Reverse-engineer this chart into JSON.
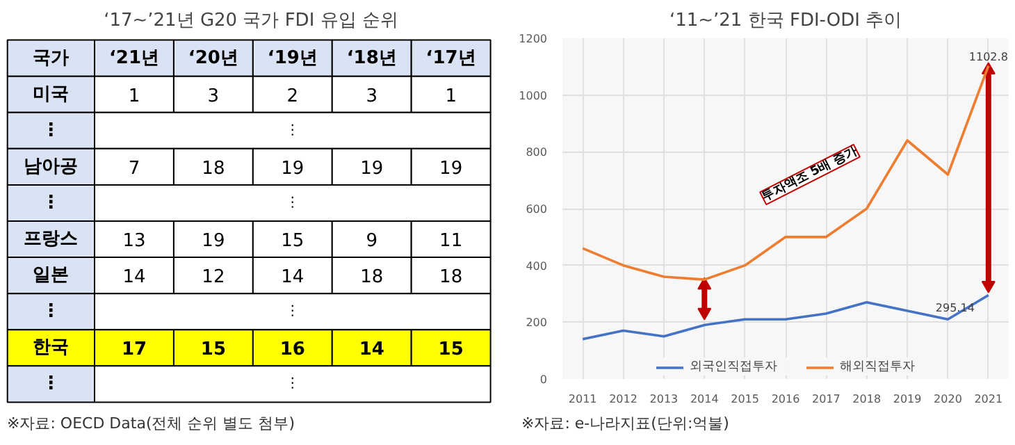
{
  "chart_data": [
    {
      "type": "heatmap",
      "title": "‘17~’21년 G20 국가 FDI 유입 순위",
      "ylabel": "국가",
      "categories": [
        "‘21년",
        "‘20년",
        "‘19년",
        "‘18년",
        "‘17년"
      ],
      "y_categories": [
        "미국",
        "⋮",
        "남아공",
        "⋮",
        "프랑스",
        "일본",
        "⋮",
        "한국",
        "⋮"
      ],
      "cells": [
        [
          1,
          3,
          2,
          3,
          1
        ],
        [
          null,
          null,
          null,
          null,
          null
        ],
        [
          7,
          18,
          19,
          19,
          19
        ],
        [
          null,
          null,
          null,
          null,
          null
        ],
        [
          13,
          19,
          15,
          9,
          11
        ],
        [
          14,
          12,
          14,
          18,
          18
        ],
        [
          null,
          null,
          null,
          null,
          null
        ],
        [
          17,
          15,
          16,
          14,
          15
        ],
        [
          null,
          null,
          null,
          null,
          null
        ]
      ],
      "colors": [
        "#ffffff",
        "#ffffff",
        "#ffffff",
        "#ffffff",
        "#ffffff",
        "#ffffff",
        "#ffffff",
        "#ffff00",
        "#ffffff"
      ],
      "data_labels": true,
      "annotations": [
        "⋮",
        "⋮",
        "⋮",
        "⋮",
        "※자료: OECD Data(전체 순위 별도 첨부)"
      ]
    },
    {
      "type": "line",
      "title": "‘11~’21 한국 FDI-ODI 추이",
      "x": [
        2011,
        2012,
        2013,
        2014,
        2015,
        2016,
        2017,
        2018,
        2019,
        2020,
        2021
      ],
      "series": [
        {
          "name": "외국인직접투자",
          "color": "#4472c4",
          "values": [
            140,
            170,
            150,
            190,
            210,
            210,
            230,
            270,
            240,
            210,
            295.14
          ]
        },
        {
          "name": "해외직접투자",
          "color": "#ed7d31",
          "values": [
            460,
            400,
            360,
            350,
            400,
            500,
            500,
            600,
            840,
            720,
            1102.8
          ]
        }
      ],
      "xlim": [
        2010.5,
        2021.5
      ],
      "xticks": [
        2011,
        2012,
        2013,
        2014,
        2015,
        2016,
        2017,
        2018,
        2019,
        2020,
        2021
      ],
      "ylim": [
        0,
        1200
      ],
      "yticks": [
        0,
        200,
        400,
        600,
        800,
        1000,
        1200
      ],
      "grid": true,
      "legend": "bottom",
      "annotations": [
        {
          "text": "1102.8",
          "x": 2021,
          "y": 1102.8
        },
        {
          "text": "295.14",
          "x": 2021,
          "y": 295.14
        },
        "투자액조 5배 증가",
        "※자료: e-나라지표(단위:억불)"
      ]
    }
  ]
}
